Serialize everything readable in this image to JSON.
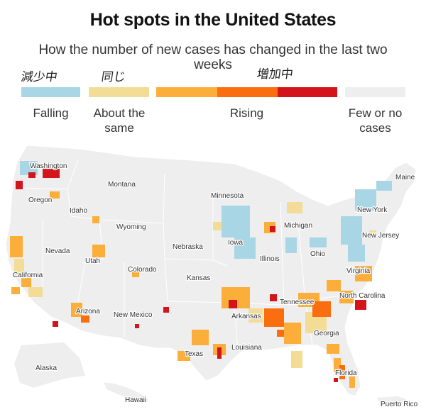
{
  "title": "Hot spots in the United States",
  "subtitle": "How the number of new cases has changed in the last two weeks",
  "handwritten_notes": {
    "falling": "減少中",
    "about_same": "同じ",
    "rising": "増加中"
  },
  "legend": {
    "falling": {
      "label": "Falling",
      "color": "#a9d6e5"
    },
    "about_same": {
      "label": "About the same",
      "color": "#f3dd96"
    },
    "rising": {
      "label": "Rising",
      "colors": [
        "#fcae3b",
        "#fb6e10",
        "#d4141b"
      ]
    },
    "few": {
      "label": "Few or no cases",
      "color": "#eeeeee"
    }
  },
  "state_labels": {
    "washington": "Washington",
    "oregon": "Oregon",
    "idaho": "Idaho",
    "montana": "Montana",
    "wyoming": "Wyoming",
    "nevada": "Nevada",
    "utah": "Utah",
    "california": "California",
    "colorado": "Colorado",
    "arizona": "Arizona",
    "new_mexico": "New Mexico",
    "nebraska": "Nebraska",
    "kansas": "Kansas",
    "texas": "Texas",
    "minnesota": "Minnesota",
    "iowa": "Iowa",
    "illinois": "Illinois",
    "arkansas": "Arkansas",
    "louisiana": "Louisiana",
    "michigan": "Michigan",
    "ohio": "Ohio",
    "tennessee": "Tennessee",
    "georgia": "Georgia",
    "florida": "Florida",
    "north_carolina": "North Carolina",
    "virginia": "Virginia",
    "new_york": "New York",
    "new_jersey": "New Jersey",
    "maine": "Maine",
    "alaska": "Alaska",
    "hawaii": "Hawaii",
    "puerto_rico": "Puerto Rico"
  }
}
